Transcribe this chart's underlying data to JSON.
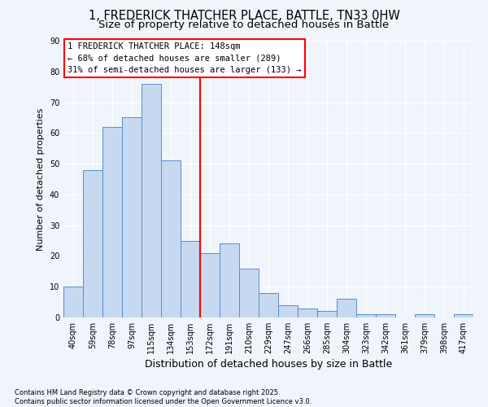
{
  "title_line1": "1, FREDERICK THATCHER PLACE, BATTLE, TN33 0HW",
  "title_line2": "Size of property relative to detached houses in Battle",
  "xlabel": "Distribution of detached houses by size in Battle",
  "ylabel": "Number of detached properties",
  "bar_labels": [
    "40sqm",
    "59sqm",
    "78sqm",
    "97sqm",
    "115sqm",
    "134sqm",
    "153sqm",
    "172sqm",
    "191sqm",
    "210sqm",
    "229sqm",
    "247sqm",
    "266sqm",
    "285sqm",
    "304sqm",
    "323sqm",
    "342sqm",
    "361sqm",
    "379sqm",
    "398sqm",
    "417sqm"
  ],
  "bar_values": [
    10,
    48,
    62,
    65,
    76,
    51,
    25,
    21,
    24,
    16,
    8,
    4,
    3,
    2,
    6,
    1,
    1,
    0,
    1,
    0,
    1
  ],
  "bar_color": "#c6d9f0",
  "bar_edge_color": "#5b8dc8",
  "background_color": "#f0f4fb",
  "plot_bg_color": "#f0f4fb",
  "ylim": [
    0,
    90
  ],
  "yticks": [
    0,
    10,
    20,
    30,
    40,
    50,
    60,
    70,
    80,
    90
  ],
  "red_line_x": 6.5,
  "annotation_text": "1 FREDERICK THATCHER PLACE: 148sqm\n← 68% of detached houses are smaller (289)\n31% of semi-detached houses are larger (133) →",
  "footer_text": "Contains HM Land Registry data © Crown copyright and database right 2025.\nContains public sector information licensed under the Open Government Licence v3.0.",
  "grid_color": "#ffffff",
  "title_fontsize": 10.5,
  "subtitle_fontsize": 9.5,
  "ylabel_fontsize": 8,
  "xlabel_fontsize": 9,
  "tick_fontsize": 7,
  "annotation_fontsize": 7.5,
  "footer_fontsize": 6
}
